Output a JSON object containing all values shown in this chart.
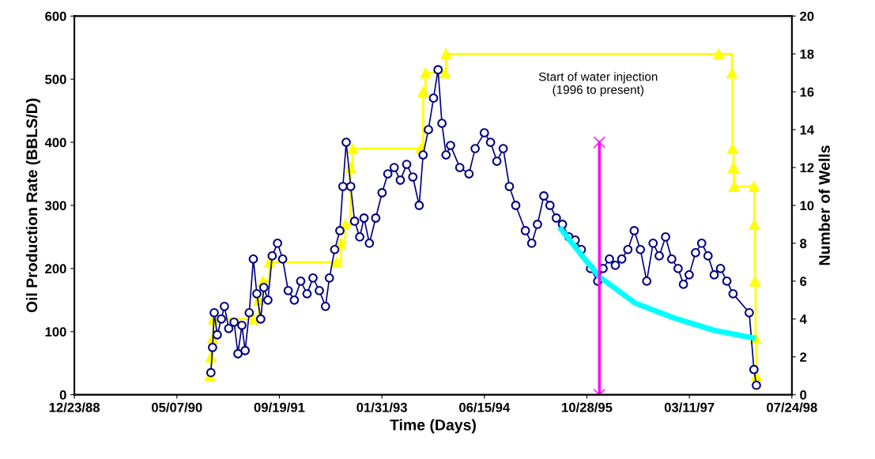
{
  "chart_data": {
    "type": "line",
    "xlabel": "Time (Days)",
    "ylabel": "Oil Production Rate (BBLS/D)",
    "y2label": "Number of Wells",
    "annotations": [
      "Start of water injection\n(1996 to present)"
    ],
    "xlim": [
      "1988-12-23",
      "1998-07-24"
    ],
    "xticks": [
      {
        "value": "1988-12-23",
        "label": "12/23/88"
      },
      {
        "value": "1990-05-07",
        "label": "05/07/90"
      },
      {
        "value": "1991-09-19",
        "label": "09/19/91"
      },
      {
        "value": "1993-01-31",
        "label": "01/31/93"
      },
      {
        "value": "1994-06-15",
        "label": "06/15/94"
      },
      {
        "value": "1995-10-28",
        "label": "10/28/95"
      },
      {
        "value": "1997-03-11",
        "label": "03/11/97"
      },
      {
        "value": "1998-07-24",
        "label": "07/24/98"
      }
    ],
    "ylim": [
      0,
      600
    ],
    "yticks": [
      0,
      100,
      200,
      300,
      400,
      500,
      600
    ],
    "y2lim": [
      0,
      20
    ],
    "y2ticks": [
      0,
      2,
      4,
      6,
      8,
      10,
      12,
      14,
      16,
      18,
      20
    ],
    "grid": false,
    "series": [
      {
        "color": "#000080",
        "marker": "circle",
        "x": [
          "1990-10-20",
          "1990-10-28",
          "1990-11-05",
          "1990-11-20",
          "1990-12-10",
          "1990-12-25",
          "1991-01-15",
          "1991-02-10",
          "1991-03-01",
          "1991-03-20",
          "1991-04-05",
          "1991-04-25",
          "1991-05-15",
          "1991-06-01",
          "1991-06-20",
          "1991-07-05",
          "1991-07-25",
          "1991-08-15",
          "1991-09-10",
          "1991-10-05",
          "1991-11-01",
          "1991-12-01",
          "1992-01-01",
          "1992-02-01",
          "1992-03-01",
          "1992-04-01",
          "1992-05-01",
          "1992-05-20",
          "1992-06-15",
          "1992-07-10",
          "1992-07-25",
          "1992-08-10",
          "1992-09-01",
          "1992-09-20",
          "1992-10-15",
          "1992-11-05",
          "1992-12-01",
          "1993-01-01",
          "1993-02-01",
          "1993-03-01",
          "1993-04-01",
          "1993-05-01",
          "1993-06-01",
          "1993-07-01",
          "1993-08-01",
          "1993-08-20",
          "1993-09-15",
          "1993-10-10",
          "1993-11-01",
          "1993-11-20",
          "1993-12-10",
          "1994-01-01",
          "1994-02-15",
          "1994-04-01",
          "1994-05-01",
          "1994-06-15",
          "1994-07-15",
          "1994-08-15",
          "1994-09-15",
          "1994-10-15",
          "1994-11-15",
          "1995-01-01",
          "1995-02-01",
          "1995-03-01",
          "1995-04-01",
          "1995-05-01",
          "1995-06-01",
          "1995-07-01",
          "1995-08-01",
          "1995-09-01",
          "1995-10-01",
          "1995-11-15",
          "1995-12-20",
          "1996-01-15",
          "1996-02-15",
          "1996-03-15",
          "1996-04-15",
          "1996-05-15",
          "1996-06-15",
          "1996-07-15",
          "1996-08-15",
          "1996-09-15",
          "1996-10-15",
          "1996-11-15",
          "1996-12-15",
          "1997-01-15",
          "1997-02-10",
          "1997-03-10",
          "1997-04-10",
          "1997-05-10",
          "1997-06-10",
          "1997-07-10",
          "1997-08-10",
          "1997-09-10",
          "1997-10-10",
          "1997-12-28",
          "1998-01-20",
          "1998-02-01"
        ],
        "values": [
          35,
          75,
          130,
          95,
          120,
          140,
          105,
          115,
          65,
          110,
          70,
          130,
          215,
          160,
          120,
          170,
          150,
          220,
          240,
          215,
          165,
          150,
          180,
          160,
          185,
          165,
          140,
          185,
          230,
          260,
          330,
          400,
          330,
          275,
          250,
          280,
          240,
          280,
          320,
          350,
          360,
          340,
          365,
          345,
          300,
          380,
          420,
          470,
          515,
          430,
          380,
          395,
          360,
          350,
          390,
          415,
          400,
          370,
          390,
          330,
          300,
          260,
          240,
          270,
          315,
          300,
          280,
          270,
          250,
          245,
          230,
          200,
          180,
          200,
          215,
          205,
          215,
          230,
          260,
          230,
          180,
          240,
          220,
          250,
          215,
          200,
          175,
          190,
          225,
          240,
          220,
          190,
          200,
          180,
          160,
          130,
          40,
          15
        ]
      },
      {
        "type": "step",
        "axis": "y2",
        "color": "#ffff00",
        "marker": "triangle",
        "x": [
          "1990-10-15",
          "1990-10-20",
          "1990-10-28",
          "1990-11-01",
          "1991-05-18",
          "1991-06-10",
          "1991-07-01",
          "1991-08-02",
          "1992-06-25",
          "1992-07-15",
          "1992-08-05",
          "1992-09-01",
          "1992-09-10",
          "1993-08-08",
          "1993-08-20",
          "1993-09-01",
          "1993-12-05",
          "1993-12-10",
          "1997-08-01",
          "1997-10-05",
          "1997-10-08",
          "1997-10-12",
          "1997-10-15",
          "1998-01-20",
          "1998-01-22",
          "1998-01-25",
          "1998-01-28",
          "1998-02-01"
        ],
        "values": [
          1,
          2,
          3,
          4,
          4,
          5,
          6,
          7,
          7,
          8,
          9,
          12,
          13,
          13,
          16,
          17,
          17,
          18,
          18,
          17,
          13,
          12,
          11,
          11,
          9,
          6,
          3,
          1
        ]
      },
      {
        "color": "#00ffff",
        "marker": "none",
        "x": [
          "1995-06-25",
          "1995-09-25",
          "1995-12-28",
          "1996-06-20",
          "1997-01-01",
          "1997-07-10",
          "1998-01-15"
        ],
        "values": [
          262,
          224,
          187,
          145,
          121,
          102,
          90
        ]
      },
      {
        "color": "#ff00ff",
        "marker": "cross",
        "x": [
          "1995-12-28",
          "1995-12-28"
        ],
        "values": [
          0,
          400
        ]
      }
    ]
  }
}
